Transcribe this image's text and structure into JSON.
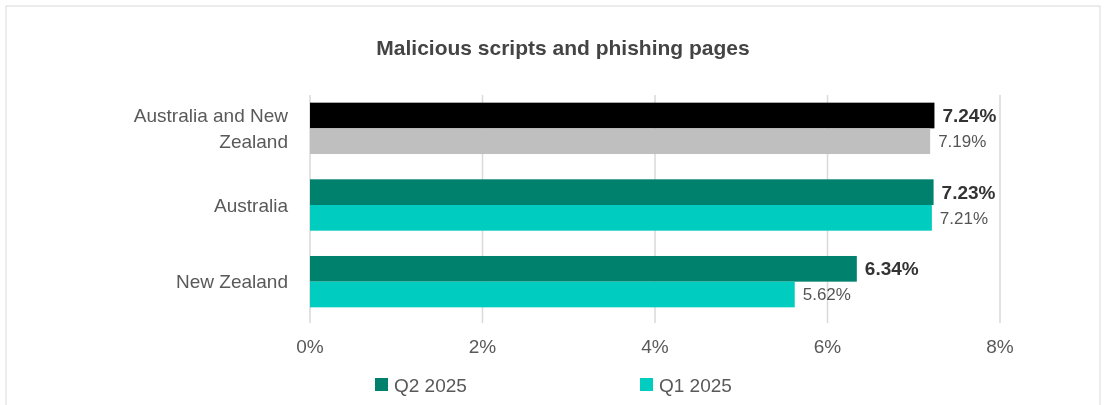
{
  "chart_data": {
    "type": "bar",
    "orientation": "horizontal",
    "title": "Malicious scripts and phishing pages",
    "categories": [
      "Australia and New Zealand",
      "Australia",
      "New Zealand"
    ],
    "series": [
      {
        "name": "Q2 2025",
        "color": "#00816e",
        "colors": [
          "#000000",
          "#00816e",
          "#00816e"
        ],
        "values": [
          7.24,
          7.23,
          6.34
        ],
        "value_labels": [
          "7.24%",
          "7.23%",
          "6.34%"
        ]
      },
      {
        "name": "Q1 2025",
        "color": "#00ccbf",
        "colors": [
          "#bfbfbf",
          "#00ccbf",
          "#00ccbf"
        ],
        "values": [
          7.19,
          7.21,
          5.62
        ],
        "value_labels": [
          "7.19%",
          "7.21%",
          "5.62%"
        ]
      }
    ],
    "xlim": [
      0,
      8
    ],
    "xticks": [
      {
        "value": 0,
        "label": "0%"
      },
      {
        "value": 2,
        "label": "2%"
      },
      {
        "value": 4,
        "label": "4%"
      },
      {
        "value": 6,
        "label": "6%"
      },
      {
        "value": 8,
        "label": "8%"
      }
    ],
    "grid": "x",
    "legend": "bottom"
  }
}
